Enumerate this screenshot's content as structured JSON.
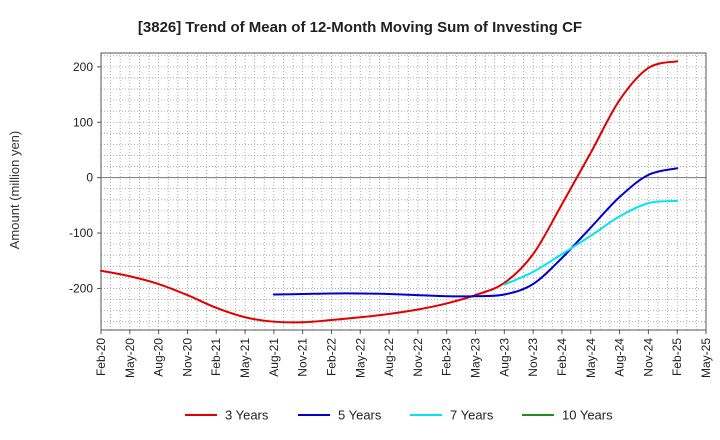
{
  "chart_data": {
    "type": "line",
    "title": "[3826]  Trend of Mean of 12-Month Moving Sum of Investing CF",
    "xlabel": "",
    "ylabel": "Amount (million yen)",
    "ylim": [
      -275,
      225
    ],
    "yticks": [
      200,
      100,
      0,
      -100,
      -200
    ],
    "xticks": [
      "Feb-20",
      "May-20",
      "Aug-20",
      "Nov-20",
      "Feb-21",
      "May-21",
      "Aug-21",
      "Nov-21",
      "Feb-22",
      "May-22",
      "Aug-22",
      "Nov-22",
      "Feb-23",
      "May-23",
      "Aug-23",
      "Nov-23",
      "Feb-24",
      "May-24",
      "Aug-24",
      "Nov-24",
      "Feb-25",
      "May-25"
    ],
    "x_start": "Feb-20",
    "x_months_span": 63,
    "grid": true,
    "legend_position": "bottom",
    "series": [
      {
        "name": "3 Years",
        "color": "#e00000",
        "x": [
          0,
          3,
          6,
          9,
          12,
          15,
          18,
          21,
          24,
          27,
          30,
          33,
          36,
          39,
          42,
          45,
          48,
          51,
          54,
          57,
          60
        ],
        "values": [
          -168,
          -178,
          -192,
          -212,
          -235,
          -252,
          -260,
          -261,
          -257,
          -252,
          -246,
          -238,
          -227,
          -212,
          -190,
          -138,
          -48,
          45,
          140,
          198,
          210
        ]
      },
      {
        "name": "5 Years",
        "color": "#0000cc",
        "x": [
          18,
          21,
          24,
          27,
          30,
          33,
          36,
          39,
          42,
          45,
          48,
          51,
          54,
          57,
          60
        ],
        "values": [
          -211,
          -210,
          -209,
          -209,
          -210,
          -212,
          -214,
          -214,
          -211,
          -192,
          -145,
          -90,
          -35,
          5,
          17
        ]
      },
      {
        "name": "7 Years",
        "color": "#00e5ee",
        "x": [
          42,
          45,
          48,
          51,
          54,
          57,
          60
        ],
        "values": [
          -193,
          -170,
          -138,
          -105,
          -70,
          -46,
          -42
        ]
      },
      {
        "name": "10 Years",
        "color": "#228b22",
        "x": [],
        "values": []
      }
    ]
  }
}
